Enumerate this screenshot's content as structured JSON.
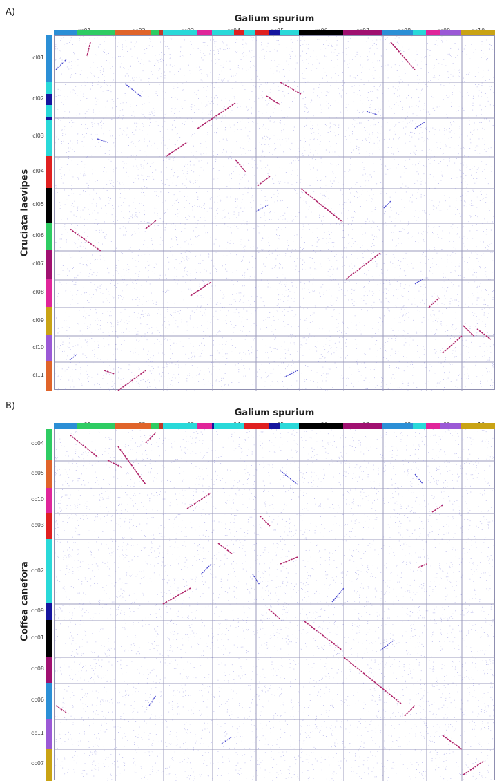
{
  "panelA": {
    "label": "A)",
    "title": "Galium spurium",
    "ylabel": "Cruciata laevipes",
    "cols": [
      {
        "name": "gs01",
        "segs": [
          [
            "#2b8fd6",
            0.38
          ],
          [
            "#2ecc63",
            0.62
          ]
        ]
      },
      {
        "name": "gs02",
        "segs": [
          [
            "#e0642a",
            0.75
          ],
          [
            "#2ecc63",
            0.17
          ],
          [
            "#c0392b",
            0.08
          ]
        ]
      },
      {
        "name": "gs03",
        "segs": [
          [
            "#29d9d9",
            0.7
          ],
          [
            "#e0259a",
            0.3
          ]
        ]
      },
      {
        "name": "gs04",
        "segs": [
          [
            "#29d9d9",
            0.5
          ],
          [
            "#e02020",
            0.25
          ],
          [
            "#29d9d9",
            0.25
          ]
        ]
      },
      {
        "name": "gs05",
        "segs": [
          [
            "#e02020",
            0.3
          ],
          [
            "#15159e",
            0.25
          ],
          [
            "#29d9d9",
            0.45
          ]
        ]
      },
      {
        "name": "gs06",
        "segs": [
          [
            "#000000",
            1.0
          ]
        ]
      },
      {
        "name": "gs07",
        "segs": [
          [
            "#a01070",
            1.0
          ]
        ]
      },
      {
        "name": "gs08",
        "segs": [
          [
            "#2b8fd6",
            0.7
          ],
          [
            "#29d9d9",
            0.3
          ]
        ]
      },
      {
        "name": "gs09",
        "segs": [
          [
            "#e0259a",
            0.4
          ],
          [
            "#9b59d6",
            0.6
          ]
        ]
      },
      {
        "name": "gs10",
        "segs": [
          [
            "#c9a314",
            1.0
          ]
        ]
      }
    ],
    "rows": [
      {
        "name": "cl01",
        "segs": [
          [
            "#2b8fd6",
            1.0
          ]
        ]
      },
      {
        "name": "cl02",
        "segs": [
          [
            "#29d9d9",
            0.35
          ],
          [
            "#15159e",
            0.3
          ],
          [
            "#29d9d9",
            0.35
          ]
        ]
      },
      {
        "name": "cl03",
        "segs": [
          [
            "#15159e",
            0.08
          ],
          [
            "#29d9d9",
            0.92
          ]
        ]
      },
      {
        "name": "cl04",
        "segs": [
          [
            "#e02020",
            1.0
          ]
        ]
      },
      {
        "name": "cl05",
        "segs": [
          [
            "#000000",
            1.0
          ]
        ]
      },
      {
        "name": "cl06",
        "segs": [
          [
            "#2ecc63",
            1.0
          ]
        ]
      },
      {
        "name": "cl07",
        "segs": [
          [
            "#a01070",
            1.0
          ]
        ]
      },
      {
        "name": "cl08",
        "segs": [
          [
            "#e0259a",
            1.0
          ]
        ]
      },
      {
        "name": "cl09",
        "segs": [
          [
            "#c9a314",
            1.0
          ]
        ]
      },
      {
        "name": "cl10",
        "segs": [
          [
            "#9b59d6",
            1.0
          ]
        ]
      },
      {
        "name": "cl11",
        "segs": [
          [
            "#e0642a",
            1.0
          ]
        ]
      }
    ]
  },
  "panelB": {
    "label": "B)",
    "title": "Galium spurium",
    "ylabel": "Coffea canefora",
    "cols": [
      {
        "name": "gs01",
        "segs": [
          [
            "#2b8fd6",
            0.38
          ],
          [
            "#2ecc63",
            0.62
          ]
        ]
      },
      {
        "name": "gs02",
        "segs": [
          [
            "#e0642a",
            0.75
          ],
          [
            "#2ecc63",
            0.17
          ],
          [
            "#c0392b",
            0.08
          ]
        ]
      },
      {
        "name": "gs03",
        "segs": [
          [
            "#29d9d9",
            0.7
          ],
          [
            "#e0259a",
            0.3
          ]
        ]
      },
      {
        "name": "gs04",
        "segs": [
          [
            "#15159e",
            0.05
          ],
          [
            "#29d9d9",
            0.7
          ],
          [
            "#e02020",
            0.25
          ]
        ]
      },
      {
        "name": "gs05",
        "segs": [
          [
            "#e02020",
            0.3
          ],
          [
            "#15159e",
            0.25
          ],
          [
            "#29d9d9",
            0.45
          ]
        ]
      },
      {
        "name": "gs06",
        "segs": [
          [
            "#000000",
            1.0
          ]
        ]
      },
      {
        "name": "gs07",
        "segs": [
          [
            "#a01070",
            1.0
          ]
        ]
      },
      {
        "name": "gs08",
        "segs": [
          [
            "#2b8fd6",
            0.7
          ],
          [
            "#29d9d9",
            0.3
          ]
        ]
      },
      {
        "name": "gs09",
        "segs": [
          [
            "#e0259a",
            0.4
          ],
          [
            "#9b59d6",
            0.6
          ]
        ]
      },
      {
        "name": "gs10",
        "segs": [
          [
            "#c9a314",
            1.0
          ]
        ]
      }
    ],
    "rows": [
      {
        "name": "cc04",
        "segs": [
          [
            "#2ecc63",
            1.0
          ]
        ]
      },
      {
        "name": "cc05",
        "segs": [
          [
            "#e0642a",
            1.0
          ]
        ]
      },
      {
        "name": "cc10",
        "segs": [
          [
            "#e0259a",
            1.0
          ]
        ]
      },
      {
        "name": "cc03",
        "segs": [
          [
            "#e02020",
            1.0
          ]
        ]
      },
      {
        "name": "cc02",
        "segs": [
          [
            "#29d9d9",
            1.0
          ]
        ]
      },
      {
        "name": "cc09",
        "segs": [
          [
            "#15159e",
            1.0
          ]
        ]
      },
      {
        "name": "cc01",
        "segs": [
          [
            "#000000",
            1.0
          ]
        ]
      },
      {
        "name": "cc08",
        "segs": [
          [
            "#a01070",
            1.0
          ]
        ]
      },
      {
        "name": "cc06",
        "segs": [
          [
            "#2b8fd6",
            1.0
          ]
        ]
      },
      {
        "name": "cc11",
        "segs": [
          [
            "#9b59d6",
            1.0
          ]
        ]
      },
      {
        "name": "cc07",
        "segs": [
          [
            "#c9a314",
            1.0
          ]
        ]
      }
    ]
  }
}
